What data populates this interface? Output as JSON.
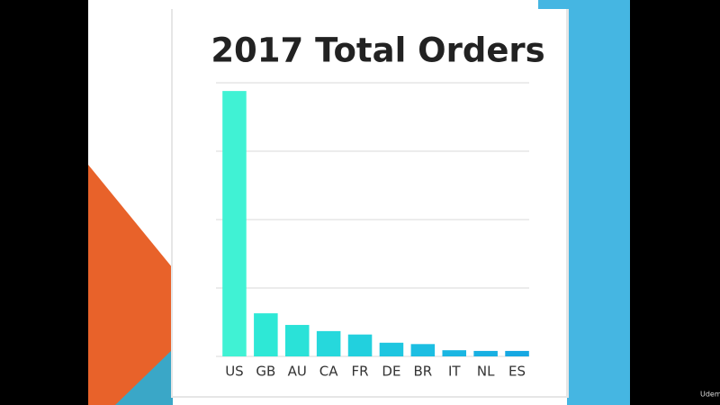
{
  "chart_data": {
    "type": "bar",
    "title": "2017 Total Orders",
    "categories": [
      "US",
      "GB",
      "AU",
      "CA",
      "FR",
      "DE",
      "BR",
      "IT",
      "NL",
      "ES"
    ],
    "values": [
      3.88,
      0.63,
      0.46,
      0.37,
      0.32,
      0.2,
      0.18,
      0.09,
      0.08,
      0.08
    ],
    "colors": [
      "#40f2d4",
      "#2ee8d6",
      "#2ae2d8",
      "#26d8dc",
      "#22d0de",
      "#1ec6e0",
      "#1cbee2",
      "#1ab6e2",
      "#18b0e2",
      "#16a8e2"
    ],
    "ylim": [
      0,
      4
    ],
    "yticks": [
      0,
      1,
      2,
      3,
      4
    ],
    "grid": true
  },
  "watermark": "Udemy"
}
